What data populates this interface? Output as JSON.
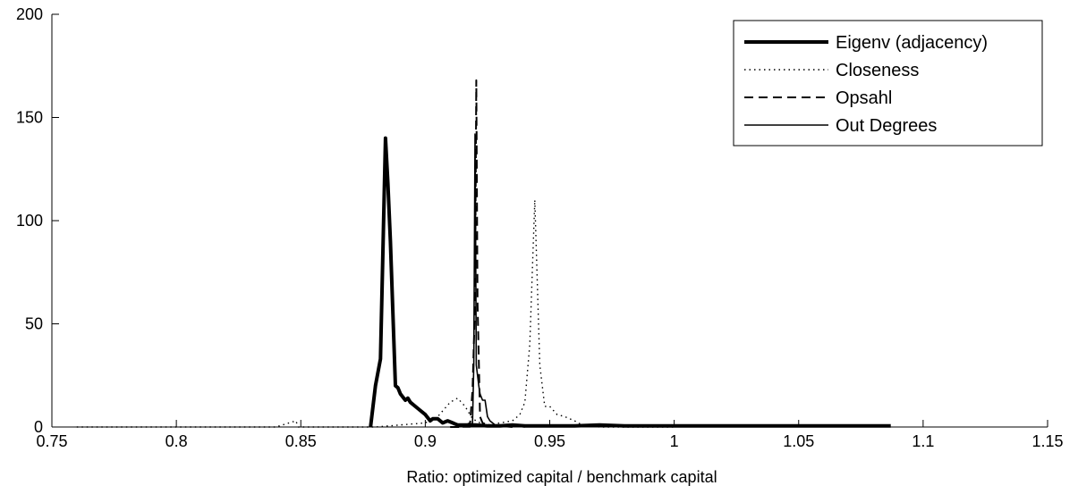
{
  "chart_data": {
    "type": "line",
    "title": "",
    "xlabel": "Ratio: optimized capital / benchmark capital",
    "ylabel": "",
    "xlim": [
      0.75,
      1.15
    ],
    "ylim": [
      0,
      200
    ],
    "xticks": [
      0.75,
      0.8,
      0.85,
      0.9,
      0.95,
      1,
      1.05,
      1.1,
      1.15
    ],
    "xtick_labels": [
      "0.75",
      "0.8",
      "0.85",
      "0.9",
      "0.95",
      "1",
      "1.05",
      "1.1",
      "1.15"
    ],
    "yticks": [
      0,
      50,
      100,
      150,
      200
    ],
    "ytick_labels": [
      "0",
      "50",
      "100",
      "150",
      "200"
    ],
    "grid": false,
    "legend_position": "top-right",
    "series": [
      {
        "name": "Eigenv (adjacency)",
        "style": "thick-solid",
        "x": [
          0.878,
          0.88,
          0.882,
          0.884,
          0.885,
          0.886,
          0.888,
          0.889,
          0.89,
          0.892,
          0.893,
          0.894,
          0.896,
          0.898,
          0.9,
          0.902,
          0.903,
          0.905,
          0.907,
          0.909,
          0.911,
          0.913,
          0.915,
          0.917,
          0.92,
          0.925,
          0.93,
          0.935,
          0.94,
          0.95,
          0.96,
          0.97,
          0.98,
          0.99,
          1.0,
          1.01,
          1.02,
          1.03,
          1.04,
          1.05,
          1.06,
          1.07,
          1.08,
          1.087
        ],
        "y": [
          0,
          20,
          33,
          140,
          118,
          90,
          20,
          19,
          16,
          13,
          14,
          12,
          10,
          8,
          6,
          3,
          4,
          4,
          2,
          3,
          2,
          1,
          1,
          1,
          1,
          0.5,
          0.5,
          1,
          0.5,
          0.5,
          0.5,
          1,
          0.5,
          0.5,
          0.5,
          0.5,
          0.5,
          0.5,
          0.5,
          0.5,
          0.5,
          0.5,
          0.5,
          0.5
        ]
      },
      {
        "name": "Closeness",
        "style": "dotted",
        "x": [
          0.76,
          0.8,
          0.84,
          0.848,
          0.849,
          0.85,
          0.87,
          0.88,
          0.9,
          0.905,
          0.91,
          0.913,
          0.916,
          0.919,
          0.922,
          0.925,
          0.93,
          0.935,
          0.938,
          0.94,
          0.942,
          0.944,
          0.946,
          0.948,
          0.95,
          0.953,
          0.956,
          0.96,
          0.963,
          0.97,
          1.0
        ],
        "y": [
          0,
          0,
          0,
          3,
          0,
          0,
          0,
          0,
          2,
          5,
          12,
          14,
          10,
          4,
          2,
          1,
          2,
          3,
          6,
          12,
          40,
          110,
          30,
          10,
          10,
          6,
          5,
          3,
          1,
          0,
          0
        ]
      },
      {
        "name": "Opsahl",
        "style": "dashed",
        "x": [
          0.91,
          0.915,
          0.918,
          0.919,
          0.92,
          0.9205,
          0.921,
          0.922,
          0.923,
          0.925,
          0.93,
          0.935
        ],
        "y": [
          0,
          0,
          2,
          18,
          60,
          168,
          60,
          5,
          2,
          1,
          0.5,
          0
        ]
      },
      {
        "name": "Out Degrees",
        "style": "thin-solid",
        "x": [
          0.915,
          0.918,
          0.919,
          0.9195,
          0.92,
          0.9205,
          0.921,
          0.9215,
          0.922,
          0.923,
          0.924,
          0.925,
          0.926,
          0.927,
          0.928,
          0.93,
          0.935,
          0.94
        ],
        "y": [
          0,
          0,
          2,
          30,
          142,
          30,
          25,
          20,
          16,
          13,
          13,
          5,
          3,
          2,
          1,
          1,
          0.5,
          0
        ]
      }
    ]
  }
}
